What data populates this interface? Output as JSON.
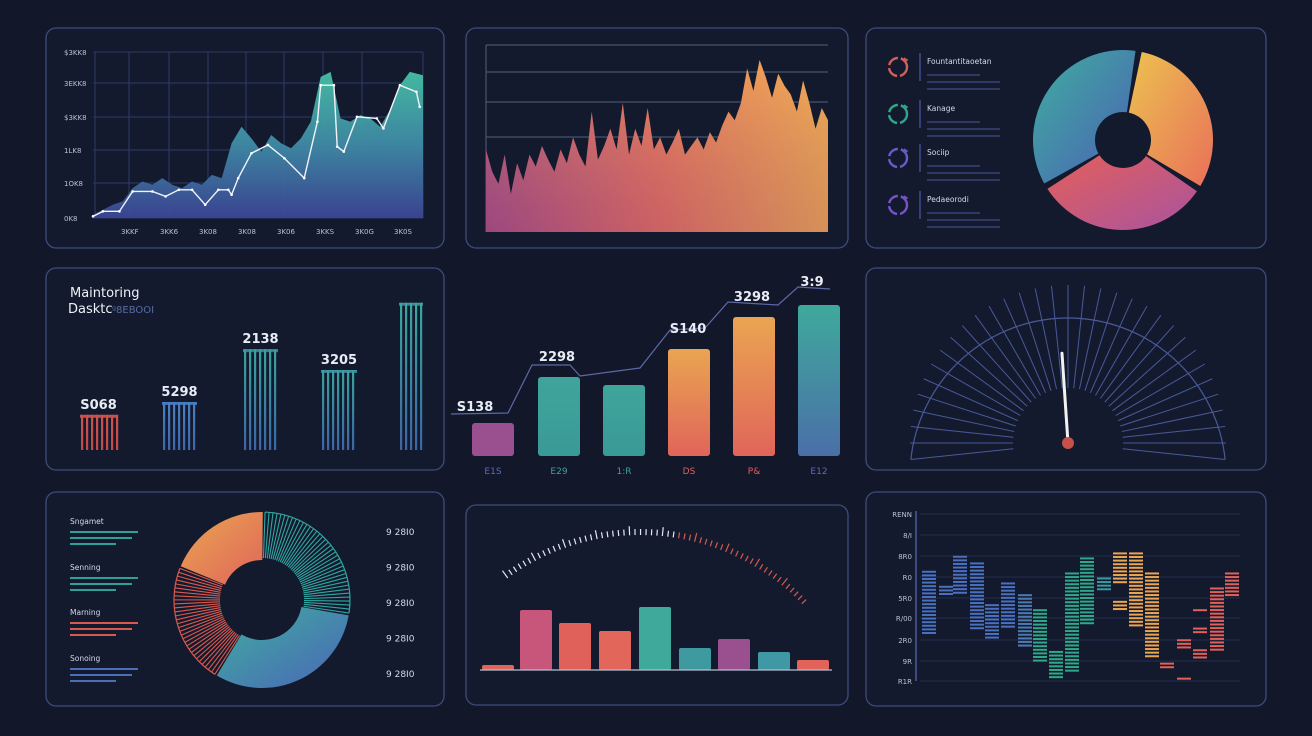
{
  "colors": {
    "background": "#12172a",
    "panel": "#131a2e",
    "border": "#3d4c7c",
    "teal": "#3fa99c",
    "blue": "#4a6fb8",
    "orange": "#eaa551",
    "red": "#d9594f",
    "purple": "#9a4f8f"
  },
  "chart_data": [
    {
      "type": "area",
      "panel": "top-left",
      "y_ticks": [
        "$3KK8",
        "3EKK8",
        "$3KK8",
        "1LK8",
        "1OK8",
        "0K8"
      ],
      "x_ticks": [
        "3KKF",
        "3KK6",
        "3K08",
        "3K08",
        "3K06",
        "3KKS",
        "3K0G",
        "3K0S"
      ],
      "grid": true,
      "xlim": [
        0,
        100
      ],
      "ylim": [
        0,
        100
      ],
      "series": [
        {
          "kind": "area",
          "x": [
            0,
            3,
            6,
            9,
            12,
            15,
            18,
            21,
            24,
            27,
            30,
            33,
            36,
            39,
            42,
            45,
            48,
            51,
            54,
            57,
            60,
            63,
            66,
            69,
            72,
            75,
            78,
            81,
            84,
            87,
            90,
            93,
            96,
            100
          ],
          "values": [
            2,
            5,
            8,
            10,
            18,
            22,
            20,
            24,
            20,
            18,
            22,
            20,
            26,
            24,
            45,
            55,
            48,
            40,
            50,
            45,
            42,
            48,
            58,
            85,
            88,
            60,
            58,
            62,
            60,
            55,
            65,
            80,
            88,
            86
          ]
        },
        {
          "kind": "line",
          "x": [
            0,
            3,
            8,
            12,
            18,
            22,
            26,
            30,
            34,
            38,
            41,
            42,
            44,
            48,
            53,
            58,
            64,
            68,
            69,
            73,
            74,
            76,
            80,
            86,
            88,
            93,
            98,
            99
          ],
          "values": [
            1,
            4,
            4,
            16,
            16,
            13,
            17,
            17,
            8,
            17,
            17,
            14,
            24,
            39,
            44,
            36,
            24,
            58,
            80,
            80,
            43,
            40,
            61,
            60,
            54,
            80,
            76,
            67
          ]
        }
      ]
    },
    {
      "type": "area",
      "panel": "top-middle",
      "grid": true,
      "ylim": [
        0,
        100
      ],
      "values": [
        48,
        35,
        28,
        45,
        22,
        40,
        30,
        45,
        38,
        50,
        42,
        35,
        48,
        40,
        55,
        45,
        38,
        70,
        42,
        50,
        60,
        48,
        75,
        45,
        60,
        50,
        72,
        48,
        55,
        45,
        52,
        60,
        45,
        50,
        55,
        48,
        58,
        52,
        62,
        70,
        65,
        75,
        95,
        82,
        100,
        90,
        78,
        92,
        85,
        80,
        70,
        88,
        75,
        60,
        72,
        65
      ]
    },
    {
      "type": "pie",
      "panel": "top-right",
      "legend": [
        {
          "label": "Fountantitaoetan",
          "color": "#d0605a",
          "icon": "refresh-icon"
        },
        {
          "label": "Kanage",
          "color": "#2fa88a",
          "icon": "refresh-icon"
        },
        {
          "label": "Sociip",
          "color": "#6a5ac8",
          "icon": "refresh-icon"
        },
        {
          "label": "Pedaeorodi",
          "color": "#7a52c8",
          "icon": "refresh-icon"
        }
      ],
      "legend_placement": "left",
      "slices": [
        {
          "value": 30,
          "colors": [
            "#ecc24f",
            "#e9705a"
          ]
        },
        {
          "value": 31,
          "colors": [
            "#e35f5a",
            "#a954a0"
          ]
        },
        {
          "value": 35,
          "colors": [
            "#3fae9f",
            "#4b5fb5"
          ]
        }
      ]
    },
    {
      "type": "bar",
      "panel": "middle-left",
      "title_line1": "Maintoring",
      "title_line2": "Dasktc",
      "title_suffix": "ᵍ8EBOOI",
      "values": [
        22,
        30,
        63,
        50,
        92
      ],
      "data_labels": [
        "S068",
        "5298",
        "2138",
        "3205",
        ""
      ],
      "colors": [
        [
          "#cf534b",
          "#c04a48"
        ],
        [
          "#4b80c2",
          "#3e67a8"
        ],
        [
          "#3aa39a",
          "#3d64a6"
        ],
        [
          "#3aa39a",
          "#3d64a6"
        ],
        [
          "#3aa89c",
          "#3d64a6"
        ]
      ],
      "ylim": [
        0,
        100
      ]
    },
    {
      "type": "bar",
      "panel": "middle-center",
      "categories": [
        "E1S",
        "E29",
        "1:R",
        "DS",
        "P&",
        "E12"
      ],
      "values": [
        33,
        79,
        71,
        107,
        139,
        151
      ],
      "data_labels": [
        "S138",
        "2298",
        "",
        "S140",
        "3298",
        "3:9"
      ],
      "category_colors": [
        "#5a6cc0",
        "#3aa39a",
        "#3aa39a",
        "#e0605a",
        "#e0605a",
        "#5a6cc0"
      ],
      "colors": [
        [
          "#9a4f8f",
          "#9a4f8f"
        ],
        [
          "#3fa49b",
          "#3a9a96"
        ],
        [
          "#3fa49b",
          "#3a9a96"
        ],
        [
          "#e9a551",
          "#e0655a"
        ],
        [
          "#eaa551",
          "#e0655a"
        ],
        [
          "#3fa99c",
          "#4a6fa8"
        ]
      ],
      "ylim": [
        0,
        160
      ]
    },
    {
      "type": "gauge",
      "panel": "middle-right",
      "value": 48,
      "range": [
        0,
        100
      ],
      "needle_color": "#f2f2f2",
      "hub_color": "#c8504a"
    },
    {
      "type": "pie",
      "panel": "bottom-left",
      "legend": [
        {
          "label": "Sngamet",
          "color": "#2f9f9a"
        },
        {
          "label": "Senning",
          "color": "#2f9f9a"
        },
        {
          "label": "Marning",
          "color": "#d9594f"
        },
        {
          "label": "Sonoing",
          "color": "#4a6fb8"
        }
      ],
      "legend_placement": "left",
      "value_labels": [
        "9 28I0",
        "9 28I0",
        "9 28I0",
        "9 28I0",
        "9 28I0"
      ],
      "slices": [
        {
          "value": 27,
          "style": "hatched",
          "colors": [
            "#2fa7a2",
            "#2fa7a2"
          ]
        },
        {
          "value": 31,
          "style": "solid",
          "colors": [
            "#3fae9f",
            "#4b65b8"
          ]
        },
        {
          "value": 22,
          "style": "hatched",
          "colors": [
            "#d9594f",
            "#d9594f"
          ]
        },
        {
          "value": 19,
          "style": "solid",
          "colors": [
            "#e9a551",
            "#e0655a"
          ]
        }
      ]
    },
    {
      "type": "bar",
      "panel": "bottom-center",
      "values": [
        5,
        60,
        47,
        39,
        63,
        22,
        31,
        18,
        10
      ],
      "colors": [
        "#e0655a",
        "#c8557a",
        "#e0605a",
        "#e3665a",
        "#3fa99c",
        "#3f9aa0",
        "#9a4f8f",
        "#3f98a4",
        "#e3625a"
      ],
      "ylim": [
        0,
        70
      ],
      "gauge_arc": {
        "ticks": 60,
        "colors": [
          "#e6e9f2",
          "#d9594f"
        ]
      }
    },
    {
      "type": "range-bar",
      "panel": "bottom-right",
      "y_ticks": [
        "RENN",
        "8/I",
        "8R0",
        "R0",
        "5R0",
        "R/00",
        "2R0",
        "9R",
        "R1R"
      ],
      "ylim": [
        0,
        100
      ],
      "grid": true,
      "columns": [
        {
          "ranges": [
            [
              29,
              66
            ]
          ],
          "color": "#4a70c0"
        },
        {
          "ranges": [
            [
              51,
              57
            ]
          ],
          "color": "#4a70c0"
        },
        {
          "ranges": [
            [
              53,
              75
            ]
          ],
          "color": "#4a70c0"
        },
        {
          "ranges": [
            [
              32,
              71
            ]
          ],
          "color": "#4a70c0"
        },
        {
          "ranges": [
            [
              25,
              46
            ]
          ],
          "color": "#4a70c0"
        },
        {
          "ranges": [
            [
              32,
              59
            ]
          ],
          "color": "#4a70c0"
        },
        {
          "ranges": [
            [
              21,
              52
            ]
          ],
          "color": "#4a7ab0"
        },
        {
          "ranges": [
            [
              11,
              43
            ]
          ],
          "color": "#2fa88a"
        },
        {
          "ranges": [
            [
              2,
              18
            ]
          ],
          "color": "#2fa88a"
        },
        {
          "ranges": [
            [
              5,
              65
            ]
          ],
          "color": "#2fa88a"
        },
        {
          "ranges": [
            [
              34,
              74
            ]
          ],
          "color": "#2fa88a"
        },
        {
          "ranges": [
            [
              54,
              62
            ]
          ],
          "color": "#3a9aa0"
        },
        {
          "ranges": [
            [
              59,
              77
            ],
            [
              42,
              48
            ]
          ],
          "color": "#eaa551"
        },
        {
          "ranges": [
            [
              32,
              77
            ]
          ],
          "color": "#eaa551"
        },
        {
          "ranges": [
            [
              14,
              65
            ]
          ],
          "color": "#eaa551"
        },
        {
          "ranges": [
            [
              7,
              11
            ]
          ],
          "color": "#e0605a"
        },
        {
          "ranges": [
            [
              20,
              25
            ],
            [
              0,
              2
            ]
          ],
          "color": "#e0605a"
        },
        {
          "ranges": [
            [
              41,
              43
            ],
            [
              29,
              32
            ],
            [
              13,
              19
            ]
          ],
          "color": "#e0605a"
        },
        {
          "ranges": [
            [
              19,
              56
            ]
          ],
          "color": "#e0605a"
        },
        {
          "ranges": [
            [
              52,
              65
            ]
          ],
          "color": "#e0605a"
        }
      ]
    }
  ]
}
